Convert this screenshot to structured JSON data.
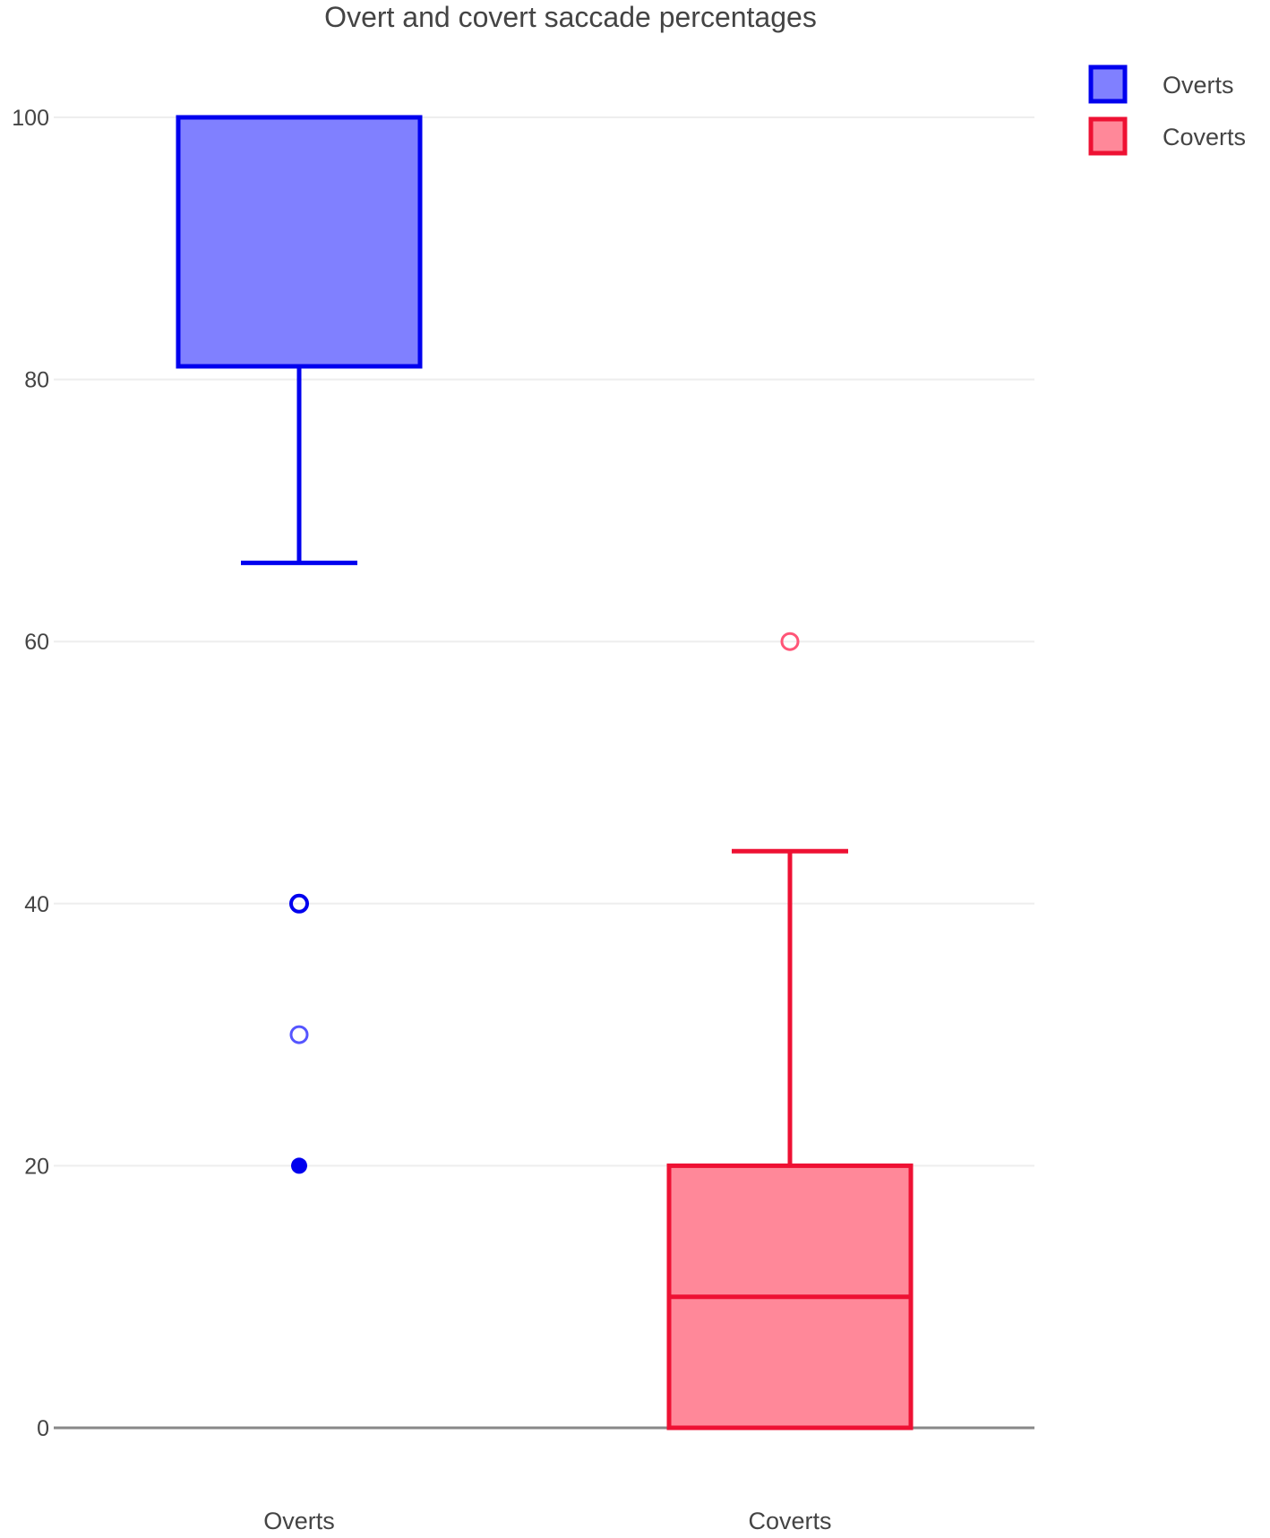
{
  "chart_data": {
    "type": "box",
    "title": "Overt and covert saccade percentages",
    "xlabel": "",
    "ylabel": "",
    "ylim": [
      0,
      100
    ],
    "yticks": [
      0,
      20,
      40,
      60,
      80,
      100
    ],
    "grid": true,
    "legend_position": "top-right",
    "categories": [
      "Overts",
      "Coverts"
    ],
    "series": [
      {
        "name": "Overts",
        "category": "Overts",
        "color": "#0000ee",
        "fill": "#8080ff",
        "whisker_low": 66,
        "q1": 81,
        "median": 100,
        "q3": 100,
        "whisker_high": 100,
        "outliers": [
          {
            "value": 40,
            "style": "open"
          },
          {
            "value": 30,
            "style": "open-light"
          },
          {
            "value": 20,
            "style": "filled"
          }
        ]
      },
      {
        "name": "Coverts",
        "category": "Coverts",
        "color": "#ee1133",
        "fill": "#ff8899",
        "whisker_low": 0,
        "q1": 0,
        "median": 10,
        "q3": 20,
        "whisker_high": 44,
        "outliers": [
          {
            "value": 60,
            "style": "open-light"
          }
        ]
      }
    ]
  }
}
